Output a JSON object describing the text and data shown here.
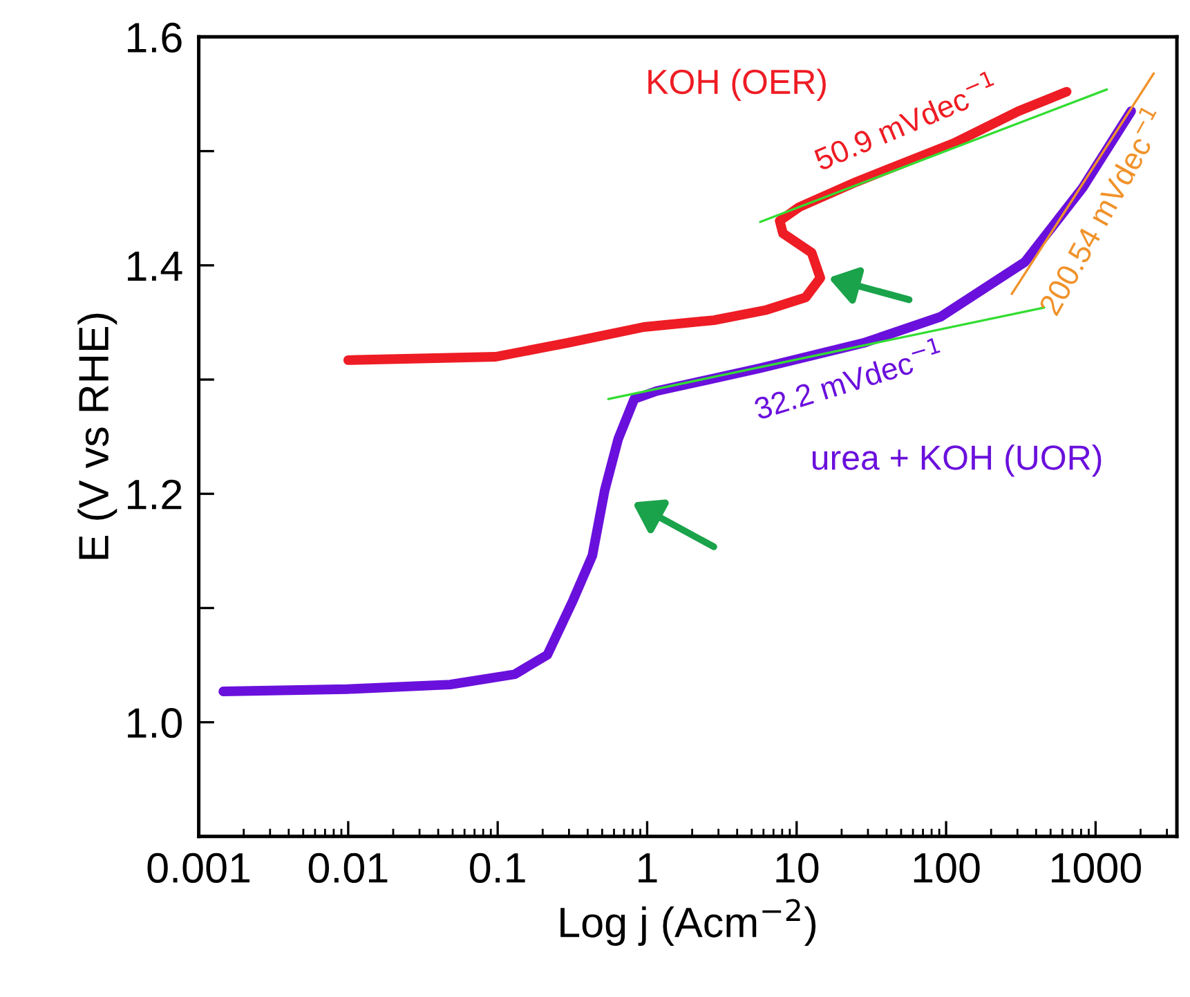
{
  "chart_data": {
    "type": "line",
    "xlabel": "Log j (Acm$^{−2}$)",
    "ylabel": "E (V vs RHE)",
    "log": "x",
    "xlim": [
      0.001,
      3500
    ],
    "ylim": [
      0.9,
      1.6
    ],
    "xticks": [
      0.001,
      0.01,
      0.1,
      1,
      10,
      100,
      1000
    ],
    "yticks": [
      {
        "value": 1.0,
        "label": "1.0"
      },
      {
        "value": 1.1,
        "label": null
      },
      {
        "value": 1.2,
        "label": "1.2"
      },
      {
        "value": 1.3,
        "label": null
      },
      {
        "value": 1.4,
        "label": "1.4"
      },
      {
        "value": 1.5,
        "label": null
      },
      {
        "value": 1.6,
        "label": "1.6"
      }
    ],
    "grid": false,
    "legend": false,
    "marker": "none",
    "line_style": "solid",
    "series": [
      {
        "name": "KOH (OER)",
        "color": "#ee1c24",
        "x": [
          0.01,
          0.097,
          0.29,
          0.95,
          2.8,
          6.3,
          11.5,
          14.4,
          12.6,
          8.1,
          7.7,
          10.4,
          25,
          113,
          305,
          640
        ],
        "values": [
          1.317,
          1.32,
          1.332,
          1.346,
          1.352,
          1.361,
          1.372,
          1.389,
          1.411,
          1.428,
          1.439,
          1.451,
          1.473,
          1.507,
          1.535,
          1.552
        ]
      },
      {
        "name": "urea + KOH (UOR)",
        "color": "#6a10dc",
        "x": [
          0.00146,
          0.0098,
          0.048,
          0.13,
          0.215,
          0.32,
          0.43,
          0.52,
          0.64,
          0.82,
          1.16,
          5.7,
          28,
          92,
          337,
          820,
          1730
        ],
        "values": [
          1.027,
          1.029,
          1.033,
          1.042,
          1.059,
          1.107,
          1.146,
          1.203,
          1.248,
          1.283,
          1.29,
          1.31,
          1.332,
          1.355,
          1.403,
          1.468,
          1.535
        ]
      },
      {
        "color": "#33dd33",
        "x": [
          5.7,
          1190
        ],
        "values": [
          1.438,
          1.554
        ]
      },
      {
        "color": "#33dd33",
        "x": [
          0.55,
          453
        ],
        "values": [
          1.283,
          1.363
        ]
      },
      {
        "color": "#f0922a",
        "x": [
          275,
          2450
        ],
        "values": [
          1.375,
          1.568
        ]
      }
    ],
    "annotations": [
      "50.9 mVdec$^{−1}$",
      "32.2 mVdec$^{−1}$",
      "200.54 mVdec$^{−1}$"
    ]
  }
}
